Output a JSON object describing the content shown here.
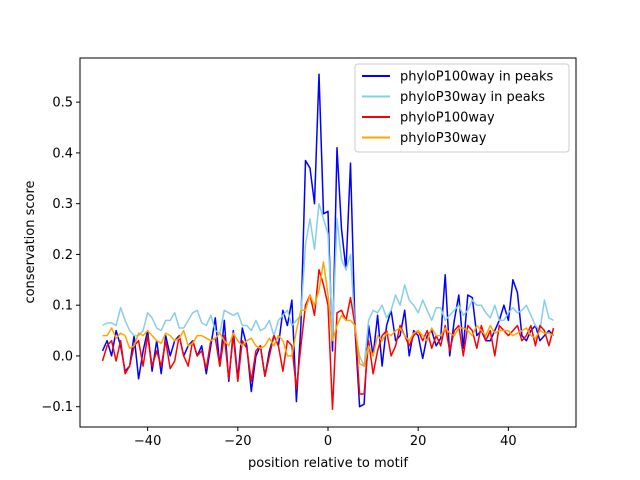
{
  "chart_data": {
    "type": "line",
    "xlabel": "position relative to motif",
    "ylabel": "conservation score",
    "xlim": [
      -55,
      55
    ],
    "ylim": [
      -0.14,
      0.587
    ],
    "x_ticks": [
      -40,
      -20,
      0,
      20,
      40
    ],
    "x_tick_labels": [
      "−40",
      "−20",
      "0",
      "20",
      "40"
    ],
    "y_ticks": [
      -0.1,
      0.0,
      0.1,
      0.2,
      0.3,
      0.4,
      0.5
    ],
    "y_tick_labels": [
      "−0.1",
      "0.0",
      "0.1",
      "0.2",
      "0.3",
      "0.4",
      "0.5"
    ],
    "grid": false,
    "legend_position": "top-right",
    "x_start": -50,
    "x_end": 50,
    "series": [
      {
        "name": "phyloP100way in peaks",
        "color": "#0000ff",
        "values": [
          0.01,
          0.03,
          0.0,
          0.05,
          0.02,
          -0.03,
          -0.02,
          0.04,
          -0.045,
          0.01,
          0.05,
          -0.03,
          0.03,
          -0.035,
          0.04,
          0.0,
          0.03,
          0.04,
          0.0,
          0.02,
          0.03,
          0.0,
          0.02,
          -0.035,
          0.02,
          0.075,
          -0.02,
          0.07,
          -0.05,
          0.05,
          -0.045,
          0.055,
          0.02,
          -0.07,
          0.0,
          0.02,
          -0.04,
          0.01,
          0.04,
          0.02,
          0.09,
          0.06,
          0.11,
          -0.09,
          0.06,
          0.385,
          0.37,
          0.3,
          0.555,
          0.28,
          0.285,
          0.01,
          0.41,
          0.25,
          0.17,
          0.38,
          0.05,
          -0.1,
          -0.095,
          0.06,
          0.0,
          0.08,
          -0.02,
          0.06,
          0.09,
          0.03,
          0.04,
          0.09,
          0.0,
          0.05,
          0.04,
          -0.005,
          0.04,
          0.05,
          0.02,
          0.035,
          0.16,
          0.0,
          0.07,
          0.12,
          0.015,
          0.12,
          0.115,
          0.04,
          0.05,
          0.03,
          0.03,
          0.05,
          0.07,
          0.1,
          0.07,
          0.15,
          0.125,
          0.04,
          0.03,
          0.05,
          0.06,
          0.03,
          0.04,
          0.05,
          0.04
        ]
      },
      {
        "name": "phyloP30way in peaks",
        "color": "#87ceeb",
        "values": [
          0.06,
          0.065,
          0.065,
          0.06,
          0.095,
          0.07,
          0.05,
          0.04,
          0.04,
          0.05,
          0.085,
          0.075,
          0.055,
          0.05,
          0.07,
          0.07,
          0.085,
          0.055,
          0.055,
          0.07,
          0.085,
          0.09,
          0.065,
          0.06,
          0.08,
          0.05,
          0.045,
          0.09,
          0.085,
          0.08,
          0.085,
          0.06,
          0.06,
          0.05,
          0.07,
          0.05,
          0.055,
          0.07,
          0.04,
          0.07,
          0.08,
          0.09,
          0.06,
          0.07,
          0.08,
          0.22,
          0.27,
          0.21,
          0.3,
          0.27,
          0.24,
          0.04,
          0.27,
          0.19,
          0.17,
          0.2,
          0.05,
          0.0,
          -0.02,
          0.07,
          0.09,
          0.085,
          0.1,
          0.075,
          0.09,
          0.12,
          0.1,
          0.14,
          0.11,
          0.1,
          0.085,
          0.11,
          0.09,
          0.07,
          0.095,
          0.095,
          0.07,
          0.08,
          0.09,
          0.1,
          0.08,
          0.09,
          0.11,
          0.1,
          0.1,
          0.085,
          0.075,
          0.1,
          0.07,
          0.07,
          0.085,
          0.095,
          0.085,
          0.09,
          0.1,
          0.08,
          0.06,
          0.05,
          0.11,
          0.075,
          0.07
        ]
      },
      {
        "name": "phyloP100way",
        "color": "#ff0000",
        "values": [
          -0.01,
          0.02,
          0.03,
          -0.01,
          0.03,
          -0.035,
          -0.02,
          0.02,
          0.03,
          -0.02,
          0.04,
          -0.02,
          0.01,
          -0.02,
          0.03,
          -0.025,
          -0.01,
          0.04,
          0.0,
          -0.02,
          0.03,
          0.0,
          0.01,
          -0.025,
          0.03,
          0.035,
          -0.02,
          0.04,
          -0.045,
          0.04,
          -0.05,
          0.03,
          0.015,
          -0.05,
          0.01,
          0.02,
          -0.04,
          0.0,
          0.04,
          0.02,
          -0.03,
          0.03,
          0.02,
          -0.065,
          0.02,
          0.1,
          0.12,
          0.08,
          0.17,
          0.14,
          0.1,
          -0.105,
          0.085,
          0.09,
          0.07,
          0.115,
          0.06,
          -0.075,
          -0.075,
          0.03,
          -0.035,
          0.01,
          0.04,
          0.05,
          0.0,
          0.02,
          0.06,
          0.04,
          0.02,
          0.04,
          0.05,
          0.03,
          0.05,
          0.015,
          0.04,
          0.02,
          0.06,
          0.01,
          0.05,
          0.06,
          0.0,
          0.06,
          0.05,
          0.015,
          0.06,
          0.03,
          0.05,
          0.0,
          0.06,
          0.05,
          0.04,
          0.05,
          0.06,
          0.03,
          0.04,
          0.06,
          0.02,
          0.06,
          0.05,
          0.02,
          0.055
        ]
      },
      {
        "name": "phyloP30way",
        "color": "#ffa500",
        "values": [
          0.04,
          0.04,
          0.055,
          0.035,
          0.045,
          0.04,
          0.015,
          0.02,
          0.045,
          0.04,
          0.05,
          0.04,
          0.03,
          0.025,
          0.045,
          0.04,
          0.03,
          0.035,
          0.05,
          0.02,
          0.025,
          0.04,
          0.04,
          0.035,
          0.03,
          0.035,
          0.045,
          0.03,
          0.02,
          0.045,
          0.03,
          0.02,
          0.03,
          0.035,
          0.02,
          0.015,
          0.02,
          0.035,
          0.02,
          0.04,
          0.03,
          0.0,
          0.0,
          0.05,
          0.09,
          0.09,
          0.12,
          0.1,
          0.13,
          0.185,
          0.12,
          0.03,
          0.06,
          0.08,
          0.07,
          0.07,
          0.06,
          -0.015,
          -0.02,
          0.02,
          0.0,
          0.04,
          0.03,
          0.045,
          0.04,
          0.05,
          0.055,
          0.04,
          0.03,
          0.045,
          0.05,
          0.04,
          0.03,
          0.055,
          0.04,
          0.04,
          0.055,
          0.045,
          0.04,
          0.055,
          0.055,
          0.05,
          0.04,
          0.06,
          0.05,
          0.04,
          0.06,
          0.045,
          0.05,
          0.05,
          0.05,
          0.04,
          0.045,
          0.05,
          0.055,
          0.04,
          0.035,
          0.05,
          0.045,
          0.045,
          0.04
        ]
      }
    ]
  }
}
